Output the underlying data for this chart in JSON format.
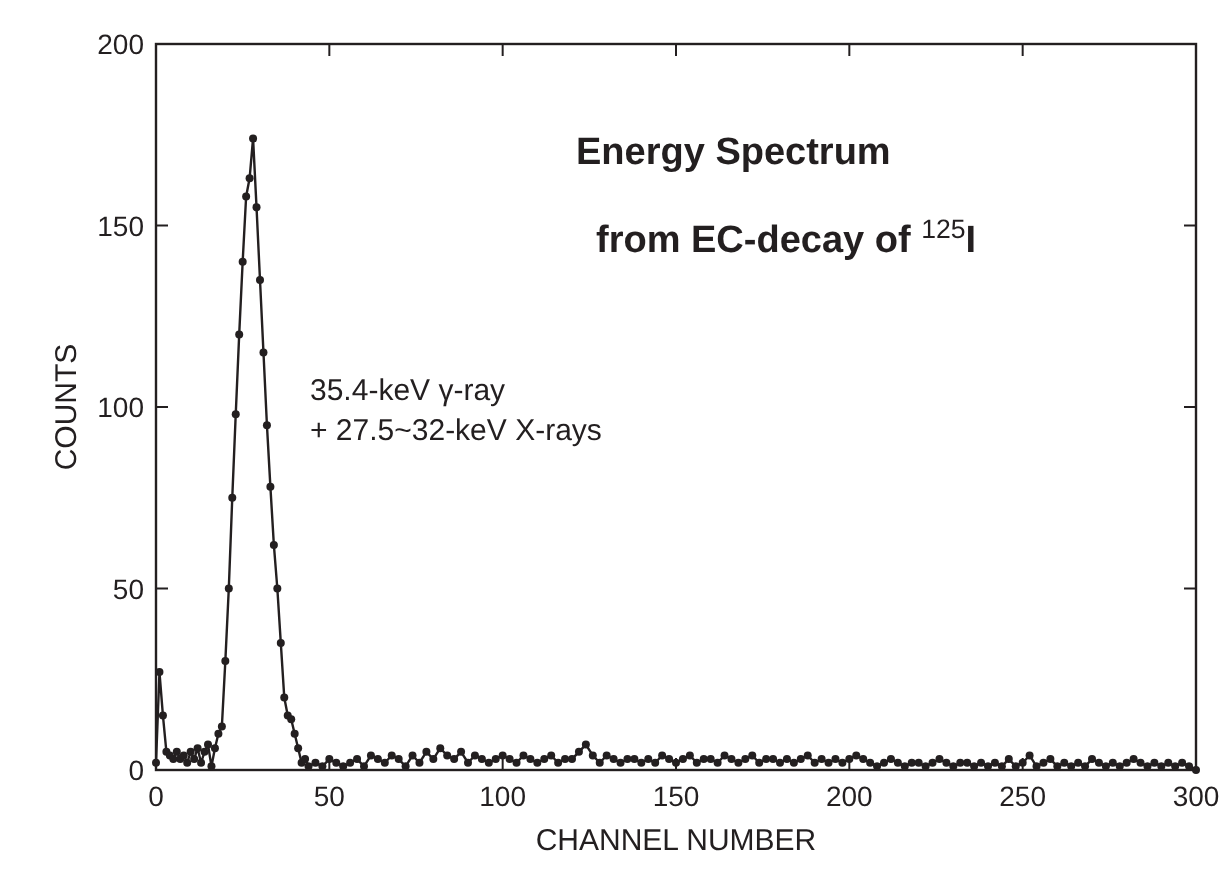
{
  "chart_data": {
    "type": "line",
    "title": "Energy Spectrum",
    "subtitle": "from EC-decay of $^{125}$I",
    "xlabel": "CHANNEL NUMBER",
    "ylabel": "COUNTS",
    "annotations": [
      "35.4-keV γ-ray",
      "+ 27.5~32-keV X-rays"
    ],
    "xlim": [
      0,
      300
    ],
    "ylim": [
      0,
      200
    ],
    "xticks": [
      0,
      50,
      100,
      150,
      200,
      250,
      300
    ],
    "yticks": [
      0,
      50,
      100,
      150,
      200
    ],
    "grid": false,
    "marker": "circle",
    "line_style": "solid",
    "x": [
      0,
      1,
      2,
      3,
      4,
      5,
      6,
      7,
      8,
      9,
      10,
      11,
      12,
      13,
      14,
      15,
      16,
      17,
      18,
      19,
      20,
      21,
      22,
      23,
      24,
      25,
      26,
      27,
      28,
      29,
      30,
      31,
      32,
      33,
      34,
      35,
      36,
      37,
      38,
      39,
      40,
      41,
      42,
      43,
      44,
      46,
      48,
      50,
      52,
      54,
      56,
      58,
      60,
      62,
      64,
      66,
      68,
      70,
      72,
      74,
      76,
      78,
      80,
      82,
      84,
      86,
      88,
      90,
      92,
      94,
      96,
      98,
      100,
      102,
      104,
      106,
      108,
      110,
      112,
      114,
      116,
      118,
      120,
      122,
      124,
      126,
      128,
      130,
      132,
      134,
      136,
      138,
      140,
      142,
      144,
      146,
      148,
      150,
      152,
      154,
      156,
      158,
      160,
      162,
      164,
      166,
      168,
      170,
      172,
      174,
      176,
      178,
      180,
      182,
      184,
      186,
      188,
      190,
      192,
      194,
      196,
      198,
      200,
      202,
      204,
      206,
      208,
      210,
      212,
      214,
      216,
      218,
      220,
      222,
      224,
      226,
      228,
      230,
      232,
      234,
      236,
      238,
      240,
      242,
      244,
      246,
      248,
      250,
      252,
      254,
      256,
      258,
      260,
      262,
      264,
      266,
      268,
      270,
      272,
      274,
      276,
      278,
      280,
      282,
      284,
      286,
      288,
      290,
      292,
      294,
      296,
      298,
      300
    ],
    "series": [
      {
        "color": "#231f20",
        "values": [
          2,
          27,
          15,
          5,
          4,
          3,
          5,
          3,
          4,
          2,
          5,
          3,
          6,
          2,
          5,
          7,
          1,
          6,
          10,
          12,
          30,
          50,
          75,
          98,
          120,
          140,
          158,
          163,
          174,
          155,
          135,
          115,
          95,
          78,
          62,
          50,
          35,
          20,
          15,
          14,
          10,
          6,
          2,
          3,
          1,
          2,
          1,
          3,
          2,
          1,
          2,
          3,
          1,
          4,
          3,
          2,
          4,
          3,
          1,
          4,
          2,
          5,
          3,
          6,
          4,
          3,
          5,
          2,
          4,
          3,
          2,
          3,
          4,
          3,
          2,
          4,
          3,
          2,
          3,
          4,
          2,
          3,
          3,
          5,
          7,
          4,
          2,
          4,
          3,
          2,
          3,
          3,
          2,
          3,
          2,
          4,
          3,
          2,
          3,
          4,
          2,
          3,
          3,
          2,
          4,
          3,
          2,
          3,
          4,
          2,
          3,
          3,
          2,
          3,
          2,
          3,
          4,
          2,
          3,
          2,
          3,
          2,
          3,
          4,
          3,
          2,
          1,
          2,
          3,
          2,
          1,
          2,
          2,
          1,
          2,
          3,
          2,
          1,
          2,
          2,
          1,
          2,
          1,
          2,
          1,
          3,
          1,
          2,
          4,
          1,
          2,
          3,
          1,
          2,
          1,
          2,
          1,
          3,
          2,
          1,
          2,
          1,
          2,
          3,
          2,
          1,
          2,
          1,
          2,
          1,
          2,
          1,
          0
        ]
      }
    ]
  }
}
